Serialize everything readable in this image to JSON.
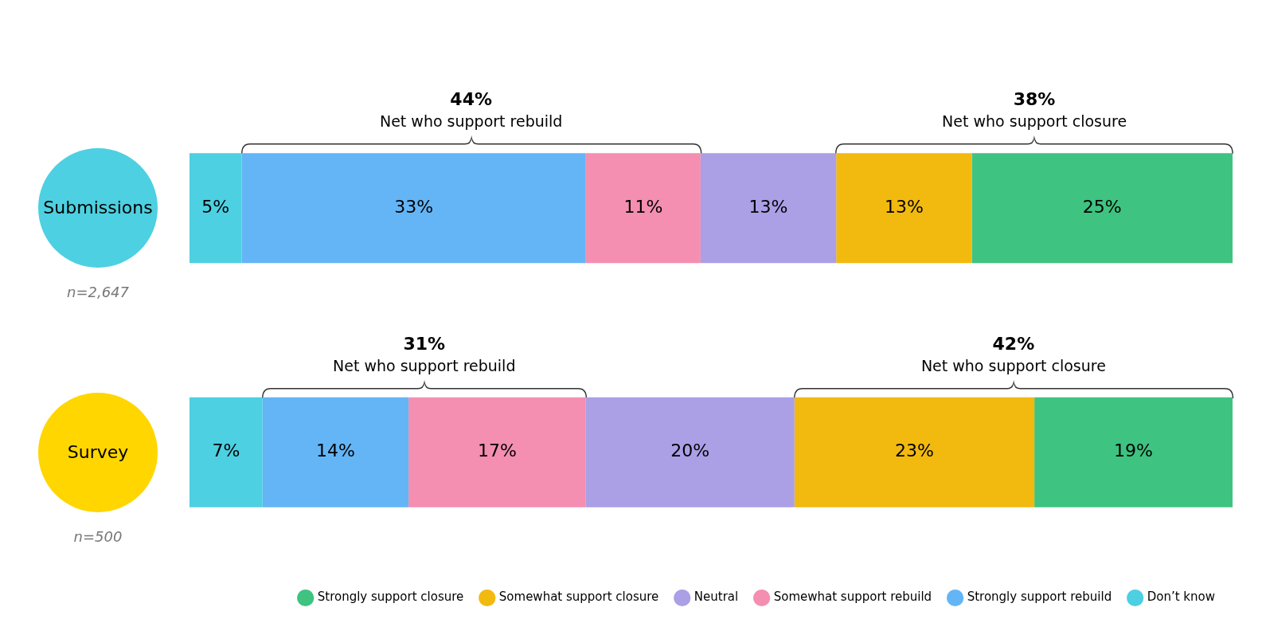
{
  "chart_data": {
    "type": "bar",
    "orientation": "horizontal",
    "stacked": true,
    "categories": [
      "Submissions",
      "Survey"
    ],
    "series": [
      {
        "name": "Don’t know",
        "color": "#4dd0e1",
        "values": [
          5,
          7
        ],
        "value_labels": [
          "5%",
          "7%"
        ]
      },
      {
        "name": "Strongly support rebuild",
        "color": "#64b5f6",
        "values": [
          33,
          14
        ],
        "value_labels": [
          "33%",
          "14%"
        ]
      },
      {
        "name": "Somewhat support rebuild",
        "color": "#f48fb1",
        "values": [
          11,
          17
        ],
        "value_labels": [
          "11%",
          "17%"
        ]
      },
      {
        "name": "Neutral",
        "color": "#ab9fe6",
        "values": [
          13,
          20
        ],
        "value_labels": [
          "13%",
          "20%"
        ]
      },
      {
        "name": "Somewhat support closure",
        "color": "#f2b90f",
        "values": [
          13,
          23
        ],
        "value_labels": [
          "13%",
          "23%"
        ]
      },
      {
        "name": "Strongly support closure",
        "color": "#3ec381",
        "values": [
          25,
          19
        ],
        "value_labels": [
          "25%",
          "19%"
        ]
      }
    ],
    "xlim": [
      0,
      100
    ],
    "tick_labels": "y",
    "grid": false,
    "legend": "bottom right",
    "annotations": [
      "44%",
      "Net who support rebuild",
      "38%",
      "Net who support closure",
      "31%",
      "Net who support rebuild",
      "42%",
      "Net who support closure",
      "n=2,647",
      "n=500"
    ]
  }
}
